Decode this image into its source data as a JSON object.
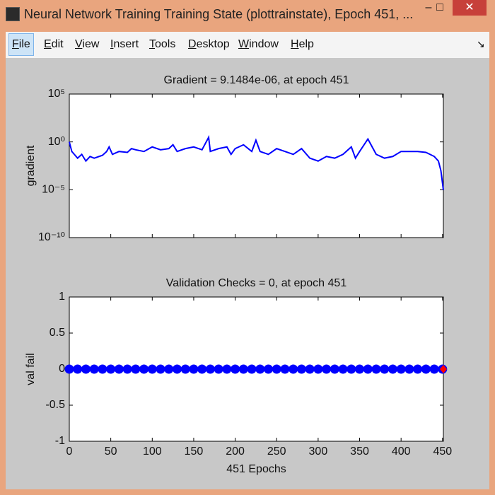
{
  "window": {
    "title": "Neural Network Training Training State (plottrainstate), Epoch 451, ...",
    "menu": [
      "File",
      "Edit",
      "View",
      "Insert",
      "Tools",
      "Desktop",
      "Window",
      "Help"
    ]
  },
  "chart_data": [
    {
      "type": "line",
      "title": "Gradient = 9.1484e-06, at epoch 451",
      "ylabel": "gradient",
      "log_y": true,
      "xlim": [
        0,
        451
      ],
      "xticks": [
        0,
        50,
        100,
        150,
        200,
        250,
        300,
        350,
        400,
        450
      ],
      "show_xtick_labels": false,
      "ylim": [
        1e-10,
        100000
      ],
      "yticks": [
        {
          "value": 1e-10,
          "label": "10⁻¹⁰"
        },
        {
          "value": 1e-05,
          "label": "10⁻⁵"
        },
        {
          "value": 1,
          "label": "10⁰"
        },
        {
          "value": 100000,
          "label": "10⁵"
        }
      ],
      "series": [
        {
          "color": "#0000ff",
          "x": [
            0,
            3,
            6,
            10,
            15,
            20,
            25,
            30,
            40,
            45,
            48,
            52,
            60,
            70,
            75,
            80,
            90,
            100,
            110,
            120,
            125,
            130,
            140,
            150,
            160,
            168,
            170,
            180,
            190,
            195,
            200,
            210,
            220,
            225,
            230,
            240,
            250,
            260,
            270,
            280,
            290,
            300,
            310,
            320,
            330,
            340,
            345,
            350,
            360,
            370,
            380,
            390,
            400,
            410,
            420,
            430,
            440,
            445,
            448,
            451
          ],
          "values": [
            1.0,
            0.1,
            0.05,
            0.02,
            0.05,
            0.01,
            0.03,
            0.02,
            0.04,
            0.1,
            0.3,
            0.05,
            0.1,
            0.08,
            0.2,
            0.15,
            0.1,
            0.3,
            0.15,
            0.2,
            0.5,
            0.1,
            0.2,
            0.3,
            0.15,
            3,
            0.1,
            0.2,
            0.3,
            0.05,
            0.2,
            0.5,
            0.1,
            1.5,
            0.1,
            0.05,
            0.2,
            0.1,
            0.05,
            0.2,
            0.02,
            0.01,
            0.03,
            0.02,
            0.05,
            0.3,
            0.02,
            0.1,
            2,
            0.05,
            0.02,
            0.03,
            0.1,
            0.1,
            0.1,
            0.08,
            0.03,
            0.01,
            0.001,
            9.1484e-06
          ]
        }
      ]
    },
    {
      "type": "scatter",
      "title": "Validation Checks = 0, at epoch 451",
      "ylabel": "val fail",
      "xlabel": "451 Epochs",
      "xlim": [
        0,
        451
      ],
      "xticks": [
        0,
        50,
        100,
        150,
        200,
        250,
        300,
        350,
        400,
        450
      ],
      "show_xtick_labels": true,
      "ylim": [
        -1,
        1
      ],
      "yticks": [
        -1,
        -0.5,
        0,
        0.5,
        1
      ],
      "series": [
        {
          "color": "#0000ff",
          "marker": "circle",
          "x": [
            0,
            10,
            20,
            30,
            40,
            50,
            60,
            70,
            80,
            90,
            100,
            110,
            120,
            130,
            140,
            150,
            160,
            170,
            180,
            190,
            200,
            210,
            220,
            230,
            240,
            250,
            260,
            270,
            280,
            290,
            300,
            310,
            320,
            330,
            340,
            350,
            360,
            370,
            380,
            390,
            400,
            410,
            420,
            430,
            440,
            450
          ],
          "values": [
            0,
            0,
            0,
            0,
            0,
            0,
            0,
            0,
            0,
            0,
            0,
            0,
            0,
            0,
            0,
            0,
            0,
            0,
            0,
            0,
            0,
            0,
            0,
            0,
            0,
            0,
            0,
            0,
            0,
            0,
            0,
            0,
            0,
            0,
            0,
            0,
            0,
            0,
            0,
            0,
            0,
            0,
            0,
            0,
            0,
            0
          ]
        },
        {
          "color": "#ff0000",
          "marker": "diamond",
          "x": [
            451
          ],
          "values": [
            0
          ]
        }
      ]
    }
  ]
}
